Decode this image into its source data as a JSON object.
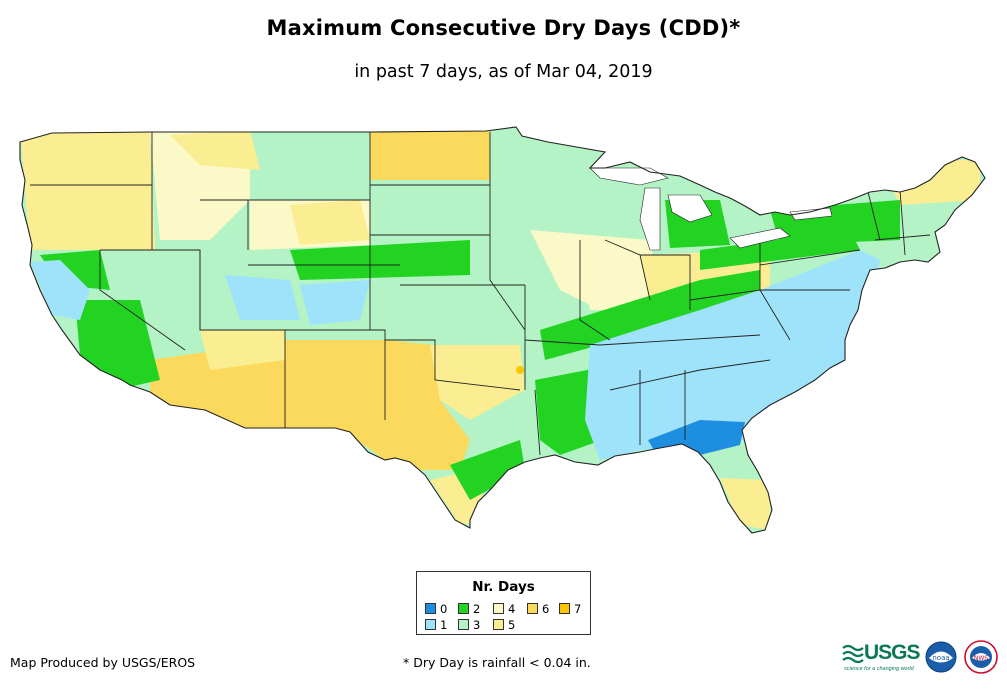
{
  "title": "Maximum Consecutive Dry Days (CDD)*",
  "subtitle": "in past 7 days, as of Mar 04, 2019",
  "legend": {
    "title": "Nr. Days",
    "items": [
      {
        "label": "0",
        "color": "#1e8fe0"
      },
      {
        "label": "1",
        "color": "#9fe3fa"
      },
      {
        "label": "2",
        "color": "#22d322"
      },
      {
        "label": "3",
        "color": "#b3f3c6"
      },
      {
        "label": "4",
        "color": "#fbf9c8"
      },
      {
        "label": "5",
        "color": "#fbee92"
      },
      {
        "label": "6",
        "color": "#fbd95d"
      },
      {
        "label": "7",
        "color": "#f9c500"
      }
    ]
  },
  "credit": "Map Produced by USGS/EROS",
  "footnote": "* Dry Day is rainfall < 0.04 in.",
  "logos": {
    "usgs_word": "USGS",
    "usgs_tagline": "science for a changing world",
    "noaa_text": "noaa",
    "nws_text": "NWS"
  },
  "colors": {
    "state_border": "#222222",
    "lake": "#ffffff"
  }
}
